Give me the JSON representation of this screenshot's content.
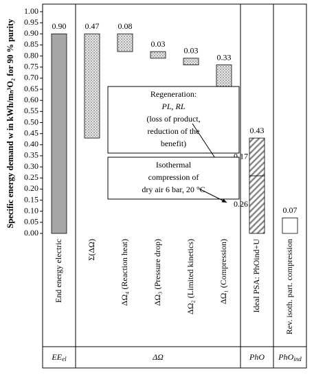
{
  "chart_data": {
    "type": "waterfall",
    "y_label": "Specific energy demand w in kWh/mₙ³O₂ for 90 % purity",
    "categories": [
      "End energy electric",
      "Σ(ΔΩ)",
      "ΔΩ₄ (Reaction heat)",
      "ΔΩ₃ (Pressure drop)",
      "ΔΩ₂ (Limited kinetics)",
      "ΔΩ₁ (Compression)",
      "Ideal PSA: PhOind+U",
      "Rev. isoth. part. compression"
    ],
    "values": [
      0.9,
      0.47,
      0.08,
      0.03,
      0.03,
      0.33,
      0.43,
      0.07
    ],
    "value_labels": [
      "0.90",
      "0.47",
      "0.08",
      "0.03",
      "0.03",
      "0.33",
      "0.43",
      "0.07"
    ],
    "stack": {
      "values": [
        0.26,
        0.17
      ],
      "value_labels": [
        "0.26",
        "0.17"
      ]
    },
    "colors": [
      "#a6a6a6",
      "dots",
      "dots",
      "dots",
      "dots",
      "dots",
      "hatch",
      "#ffffff"
    ],
    "ylim": [
      0,
      1
    ],
    "yticks": [
      {
        "value": 0,
        "label": "0.00"
      },
      {
        "value": 0.05,
        "label": "0.05"
      },
      {
        "value": 0.1,
        "label": "0.10"
      },
      {
        "value": 0.15,
        "label": "0.15"
      },
      {
        "value": 0.2,
        "label": "0.20"
      },
      {
        "value": 0.25,
        "label": "0.25"
      },
      {
        "value": 0.3,
        "label": "0.30"
      },
      {
        "value": 0.35,
        "label": "0.35"
      },
      {
        "value": 0.4,
        "label": "0.40"
      },
      {
        "value": 0.45,
        "label": "0.45"
      },
      {
        "value": 0.5,
        "label": "0.50"
      },
      {
        "value": 0.55,
        "label": "0.55"
      },
      {
        "value": 0.6,
        "label": "0.60"
      },
      {
        "value": 0.65,
        "label": "0.65"
      },
      {
        "value": 0.7,
        "label": "0.70"
      },
      {
        "value": 0.75,
        "label": "0.75"
      },
      {
        "value": 0.8,
        "label": "0.80"
      },
      {
        "value": 0.85,
        "label": "0.85"
      },
      {
        "value": 0.9,
        "label": "0.90"
      },
      {
        "value": 0.95,
        "label": "0.95"
      },
      {
        "value": 1,
        "label": "1.00"
      }
    ],
    "groups": [
      {
        "text": "EE",
        "sub": "el"
      },
      {
        "text": "ΔΩ",
        "sub": ""
      },
      {
        "text": "PhO",
        "sub": ""
      },
      {
        "text": "PhO",
        "sub": "ind"
      }
    ],
    "annotations": [
      {
        "lines": [
          "Regeneration:",
          "PL, RL",
          "(loss of product,",
          "reduction of the",
          "benefit)"
        ]
      },
      {
        "lines": [
          "Isothermal",
          "compression of",
          "dry air 6 bar, 20 °C"
        ]
      }
    ]
  }
}
